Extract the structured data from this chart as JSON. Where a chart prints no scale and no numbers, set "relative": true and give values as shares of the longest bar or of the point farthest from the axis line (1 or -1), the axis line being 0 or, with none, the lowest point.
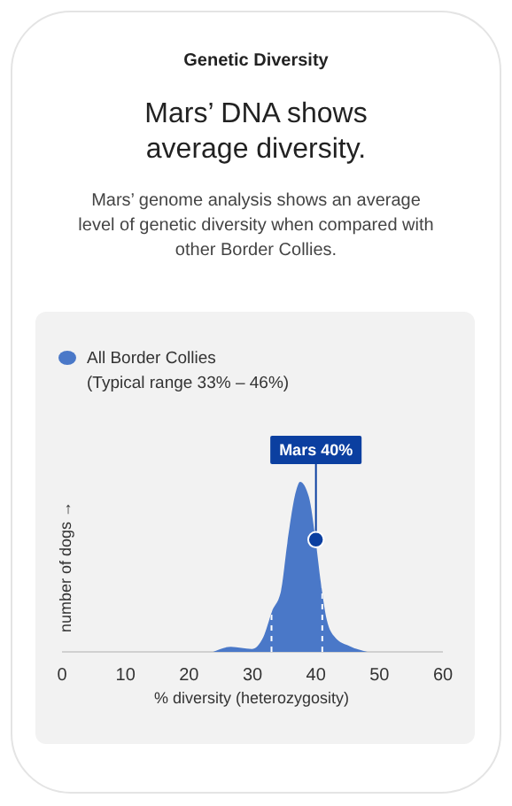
{
  "chart_data": {
    "type": "area",
    "title": "Genetic Diversity",
    "subtitle": "Mars’ DNA shows average diversity.",
    "annotations": [
      "Mars’ genome analysis shows an average level of genetic diversity when compared with other Border Collies.",
      "(Typical range 33% – 46%)",
      {
        "text": "Mars 40%",
        "x": 40,
        "y": 0.66
      }
    ],
    "xlabel": "% diversity  (heterozygosity)",
    "ylabel": "number of dogs →",
    "xlim": [
      0,
      60
    ],
    "xticks": [
      0,
      10,
      20,
      30,
      40,
      50,
      60
    ],
    "relative": true,
    "tick_labels": "x",
    "legend": "top left",
    "grid": false,
    "series": [
      {
        "name": "All Border Collies",
        "color": "#4a78c8",
        "x": [
          23.8,
          26.6,
          29.9,
          31.7,
          33.1,
          34.5,
          35.5,
          36.9,
          37.5,
          38.9,
          39.9,
          40.8,
          41.7,
          43.0,
          45.3,
          48.1
        ],
        "values": [
          0,
          0.03,
          0.017,
          0.086,
          0.24,
          0.36,
          0.64,
          0.95,
          1,
          0.91,
          0.67,
          0.4,
          0.19,
          0.086,
          0.034,
          0
        ]
      },
      {
        "type": "scatter",
        "color": "#0b3fa0",
        "x": [
          40
        ],
        "values": [
          0.66
        ],
        "marker": "circle"
      }
    ],
    "ref_lines": [
      {
        "axis": "x",
        "value": 33,
        "color": "#ffffff",
        "line_style": "dashed"
      },
      {
        "axis": "x",
        "value": 41,
        "color": "#ffffff",
        "line_style": "dashed"
      }
    ]
  }
}
